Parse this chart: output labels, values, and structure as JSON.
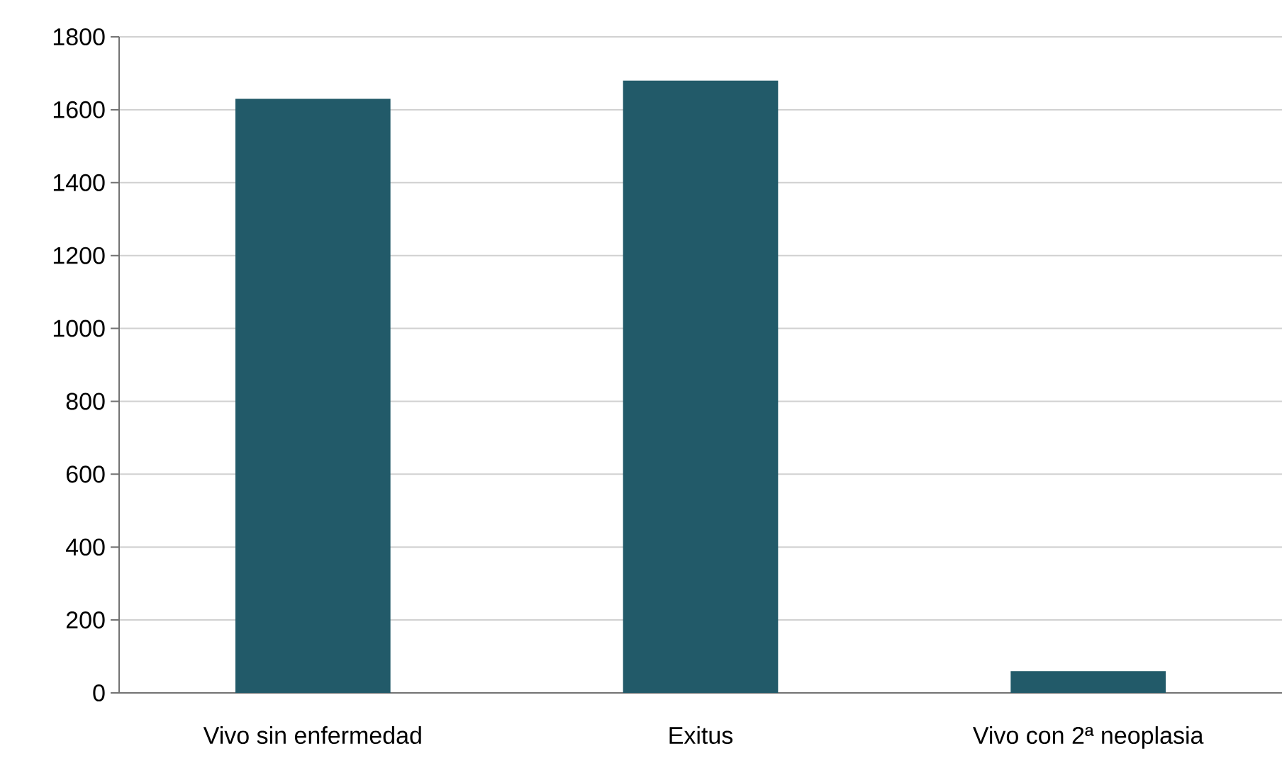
{
  "chart_data": {
    "type": "bar",
    "categories": [
      "Vivo sin enfermedad",
      "Exitus",
      "Vivo con 2ª neoplasia"
    ],
    "values": [
      1630,
      1680,
      60
    ],
    "color": "#225a69",
    "ylim": [
      0,
      1800
    ],
    "yticks": [
      0,
      200,
      400,
      600,
      800,
      1000,
      1200,
      1400,
      1600,
      1800
    ],
    "grid": "y"
  }
}
